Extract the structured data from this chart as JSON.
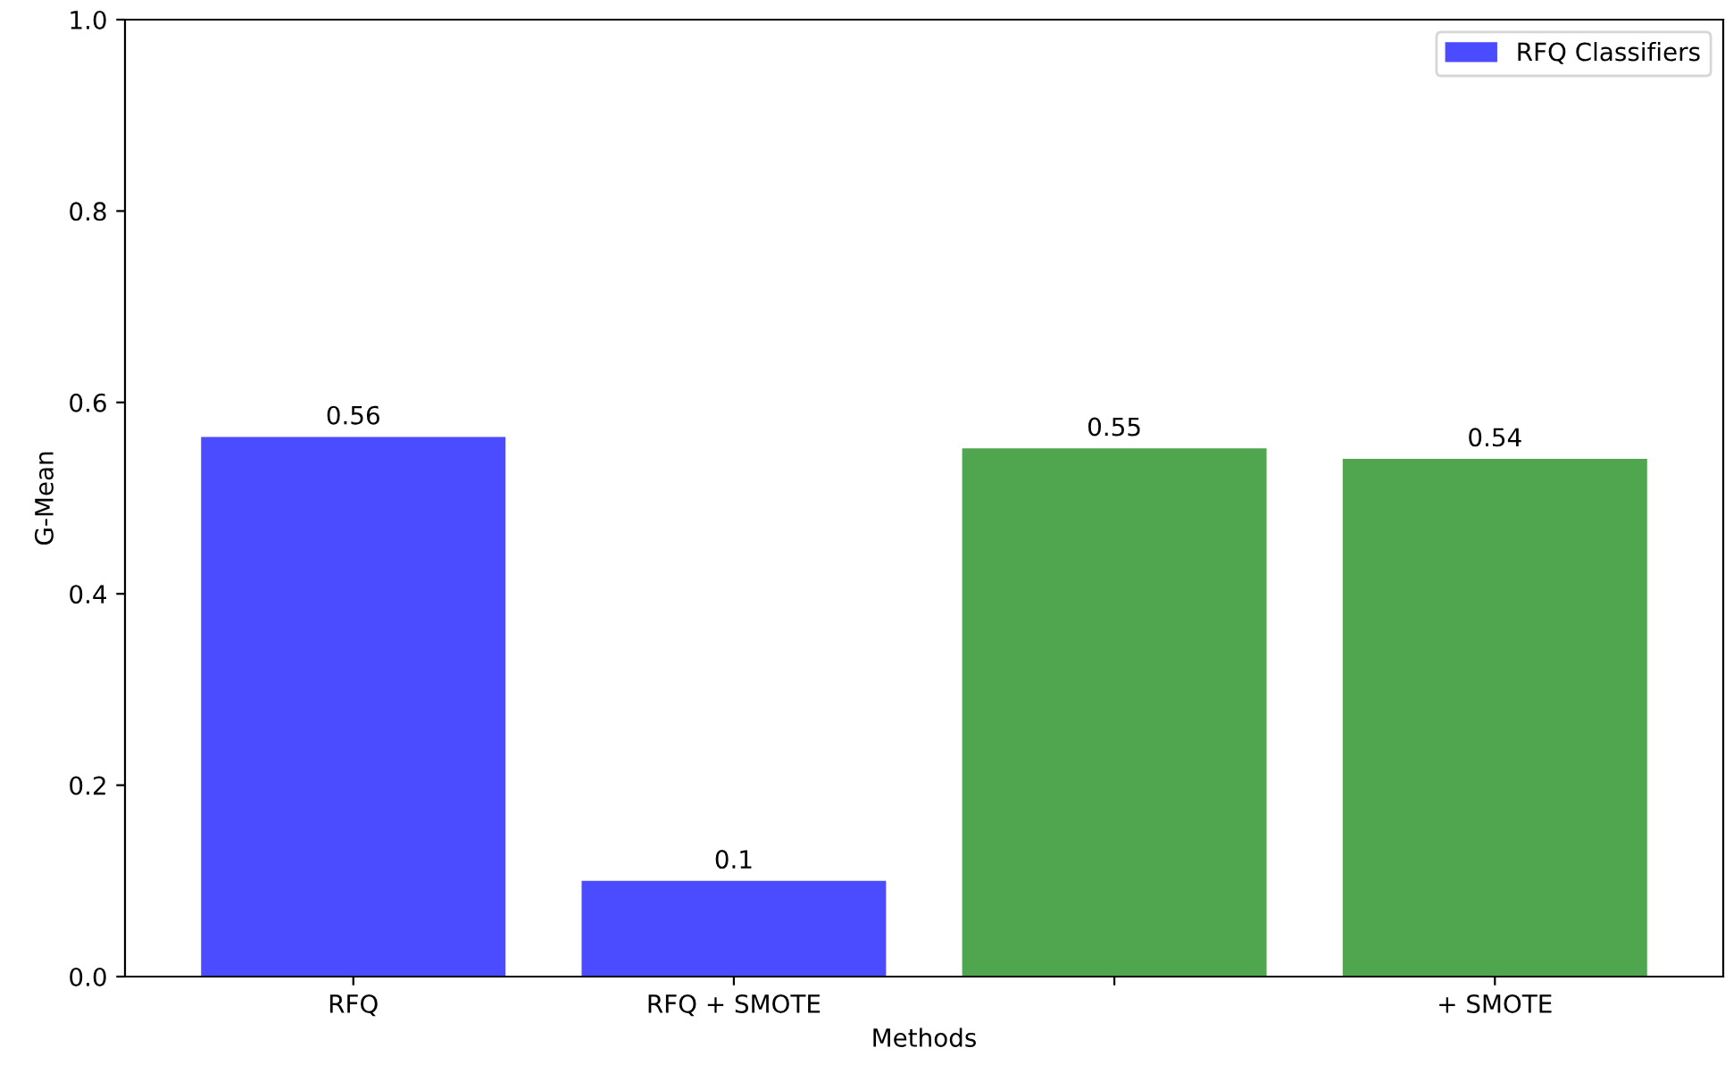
{
  "chart_data": {
    "type": "bar",
    "xlabel": "Methods",
    "ylabel": "G-Mean",
    "categories": [
      "RFQ",
      "RFQ + SMOTE",
      null,
      "+ SMOTE"
    ],
    "series": [
      {
        "name": "RFQ Classifiers",
        "color": "#4b4bff",
        "values": [
          0.564,
          0.1,
          null,
          null
        ],
        "value_labels": [
          "0.56",
          "0.1",
          null,
          null
        ]
      },
      {
        "color": "#4fa64f",
        "values": [
          null,
          null,
          0.552,
          0.541
        ],
        "value_labels": [
          null,
          null,
          "0.55",
          "0.54"
        ]
      }
    ],
    "ylim": [
      0,
      1
    ],
    "yticks": [
      {
        "value": 0,
        "label": "0.0"
      },
      0.2,
      0.4,
      0.6,
      0.8,
      {
        "value": 1,
        "label": "1.0"
      }
    ],
    "grid": false,
    "legend": "top right"
  }
}
